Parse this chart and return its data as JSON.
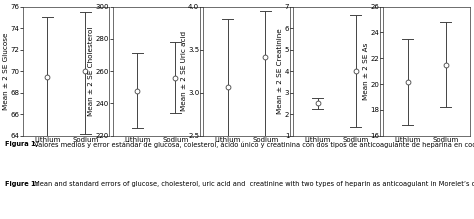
{
  "subplots": [
    {
      "ylabel": "Mean ± 2 SE Glucose",
      "xlabel_ticks": [
        "Lithium",
        "Sodium"
      ],
      "ylim": [
        64,
        76
      ],
      "yticks": [
        64,
        66,
        68,
        70,
        72,
        74,
        76
      ],
      "lithium_mean": 69.5,
      "lithium_upper": 75.0,
      "lithium_lower": 64.0,
      "sodium_mean": 70.0,
      "sodium_upper": 75.5,
      "sodium_lower": 64.2
    },
    {
      "ylabel": "Mean ± 2 SE Cholesterol",
      "xlabel_ticks": [
        "Lithium",
        "Sodium"
      ],
      "ylim": [
        220,
        300
      ],
      "yticks": [
        220,
        240,
        260,
        280,
        300
      ],
      "lithium_mean": 248.0,
      "lithium_upper": 271.0,
      "lithium_lower": 225.0,
      "sodium_mean": 256.0,
      "sodium_upper": 278.0,
      "sodium_lower": 234.0
    },
    {
      "ylabel": "Mean ± 2 SE Uric acid",
      "xlabel_ticks": [
        "Lithium",
        "Sodium"
      ],
      "ylim": [
        2.5,
        4.0
      ],
      "yticks": [
        2.5,
        3.0,
        3.5,
        4.0
      ],
      "lithium_mean": 3.07,
      "lithium_upper": 3.85,
      "lithium_lower": 2.5,
      "sodium_mean": 3.42,
      "sodium_upper": 3.95,
      "sodium_lower": 2.47
    },
    {
      "ylabel": "Mean ± 2 SE Creatinine",
      "xlabel_ticks": [
        "Lithium",
        "Sodium"
      ],
      "ylim": [
        1,
        7
      ],
      "yticks": [
        1,
        2,
        3,
        4,
        5,
        6,
        7
      ],
      "lithium_mean": 2.5,
      "lithium_upper": 2.75,
      "lithium_lower": 2.25,
      "sodium_mean": 4.0,
      "sodium_upper": 6.6,
      "sodium_lower": 1.4
    },
    {
      "ylabel": "Mean ± 2 SE As",
      "xlabel_ticks": [
        "Lithium",
        "Sodium"
      ],
      "ylim": [
        16,
        26
      ],
      "yticks": [
        16,
        18,
        20,
        22,
        24,
        26
      ],
      "lithium_mean": 20.2,
      "lithium_upper": 23.5,
      "lithium_lower": 16.8,
      "sodium_mean": 21.5,
      "sodium_upper": 24.8,
      "sodium_lower": 18.2
    }
  ],
  "caption_es_bold": "Figura 1:",
  "caption_es_rest": " Valores medios y error estándar de glucosa, colesterol, ácido único y creatinina con dos tipos de anticoagulante de heparina en cocodri-los de pantano C. moreletii en Campeche, México.",
  "caption_en_bold": "Figure 1:",
  "caption_en_rest": " Mean and standard errors of glucose, cholesterol, uric acid and  creatinine with two types of heparin as anticoagulant in Morelet’s crocodiles (C. moreletii) in Campeche, Mexico.",
  "marker_color": "white",
  "marker_edge_color": "#444444",
  "line_color": "#444444",
  "bg_color": "white",
  "fontsize_axis_label": 5.2,
  "fontsize_tick": 5.0,
  "fontsize_caption": 4.8
}
